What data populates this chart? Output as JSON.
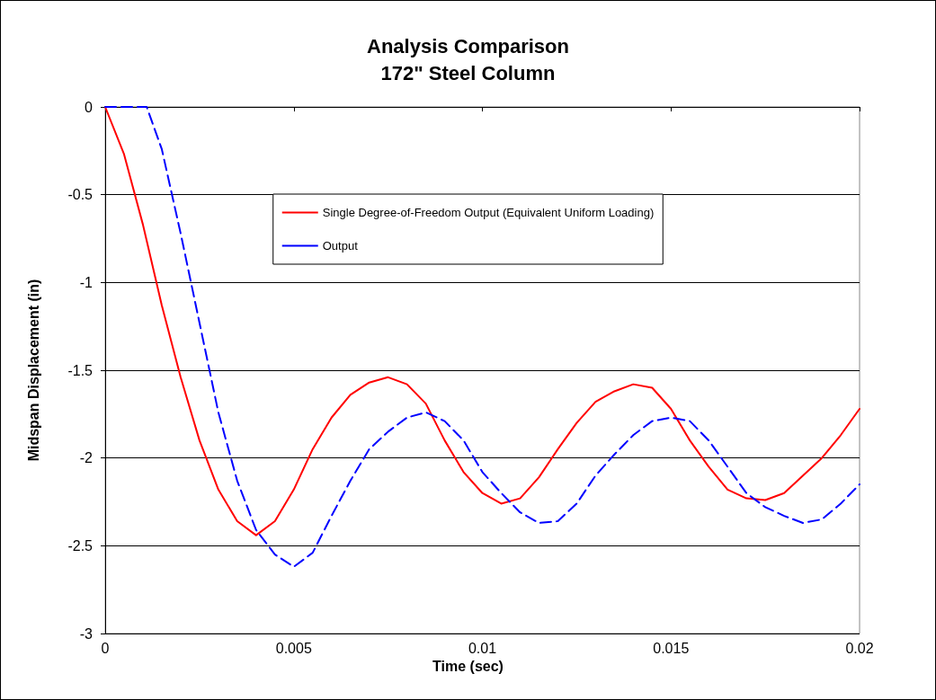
{
  "chart_data": {
    "type": "line",
    "title": "Analysis Comparison\n172\" Steel Column",
    "xlabel": "Time (sec)",
    "ylabel": "Midspan Displacement (in)",
    "xlim": [
      0,
      0.02
    ],
    "xticks": [
      0,
      0.005,
      0.01,
      0.015,
      0.02
    ],
    "ylim": [
      -3,
      0
    ],
    "yticks": [
      -3,
      -2.5,
      -2,
      -1.5,
      -1,
      -0.5,
      0
    ],
    "grid": "y",
    "legend": "top",
    "marker": "none",
    "series": [
      {
        "name": "Single Degree-of-Freedom Output (Equivalent Uniform Loading)",
        "color": "#ff0000",
        "line_style": "solid",
        "x": [
          0,
          0.0005,
          0.001,
          0.0015,
          0.002,
          0.0025,
          0.003,
          0.0035,
          0.004,
          0.0045,
          0.005,
          0.0055,
          0.006,
          0.0065,
          0.007,
          0.0075,
          0.008,
          0.0085,
          0.009,
          0.0095,
          0.01,
          0.0105,
          0.011,
          0.0115,
          0.012,
          0.0125,
          0.013,
          0.0135,
          0.014,
          0.0145,
          0.015,
          0.0155,
          0.016,
          0.0165,
          0.017,
          0.0175,
          0.018,
          0.0185,
          0.019,
          0.0195,
          0.02
        ],
        "values": [
          0,
          -0.27,
          -0.67,
          -1.13,
          -1.54,
          -1.9,
          -2.18,
          -2.36,
          -2.44,
          -2.36,
          -2.18,
          -1.95,
          -1.77,
          -1.64,
          -1.57,
          -1.54,
          -1.58,
          -1.69,
          -1.9,
          -2.08,
          -2.2,
          -2.26,
          -2.23,
          -2.11,
          -1.95,
          -1.8,
          -1.68,
          -1.62,
          -1.58,
          -1.6,
          -1.72,
          -1.9,
          -2.05,
          -2.18,
          -2.23,
          -2.24,
          -2.2,
          -2.1,
          -2,
          -1.87,
          -1.72
        ]
      },
      {
        "name": "Output",
        "color": "#0000ff",
        "line_style": "dashed",
        "x": [
          0,
          0.0011,
          0.0015,
          0.002,
          0.0025,
          0.003,
          0.0035,
          0.004,
          0.0045,
          0.005,
          0.0055,
          0.006,
          0.0065,
          0.007,
          0.0075,
          0.008,
          0.0085,
          0.009,
          0.0095,
          0.01,
          0.0105,
          0.011,
          0.0115,
          0.012,
          0.0125,
          0.013,
          0.0135,
          0.014,
          0.0145,
          0.015,
          0.0155,
          0.016,
          0.0165,
          0.017,
          0.0175,
          0.018,
          0.0185,
          0.019,
          0.0195,
          0.02
        ],
        "values": [
          0,
          0,
          -0.24,
          -0.72,
          -1.23,
          -1.74,
          -2.13,
          -2.41,
          -2.55,
          -2.62,
          -2.54,
          -2.33,
          -2.13,
          -1.95,
          -1.85,
          -1.77,
          -1.74,
          -1.79,
          -1.9,
          -2.08,
          -2.2,
          -2.31,
          -2.37,
          -2.36,
          -2.26,
          -2.1,
          -1.98,
          -1.87,
          -1.79,
          -1.77,
          -1.79,
          -1.9,
          -2.05,
          -2.2,
          -2.28,
          -2.33,
          -2.37,
          -2.35,
          -2.26,
          -2.15
        ]
      }
    ]
  }
}
